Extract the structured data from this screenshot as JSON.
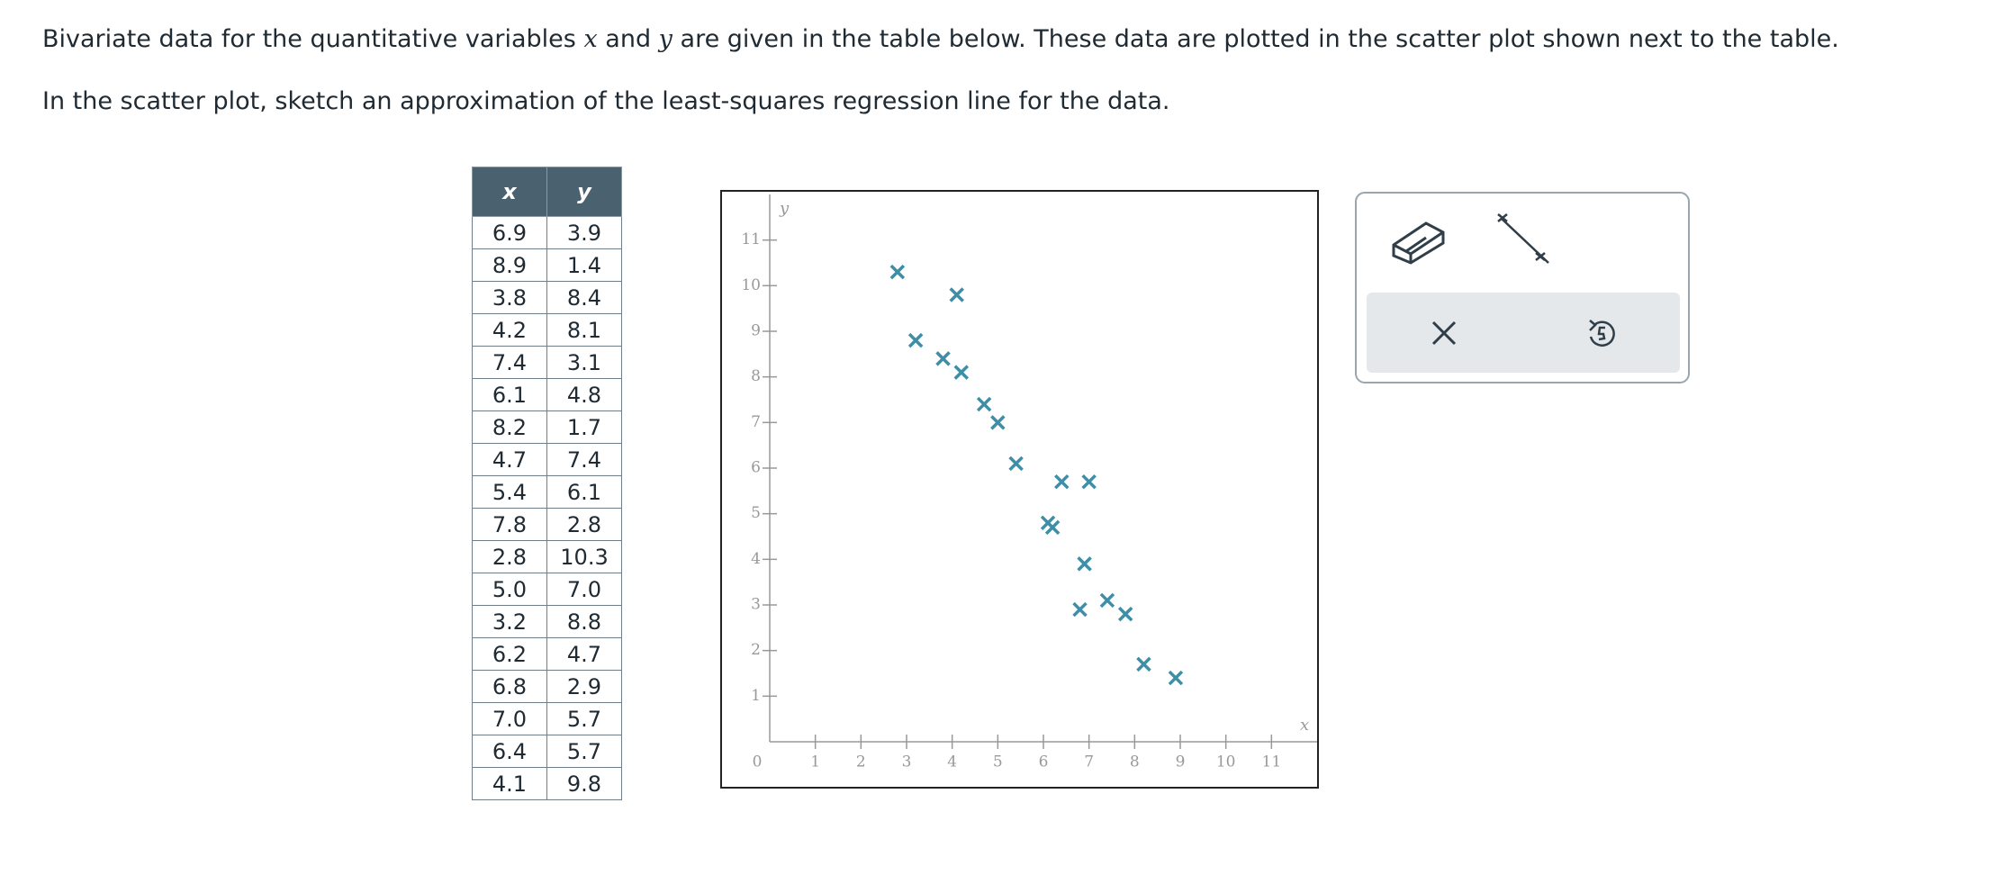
{
  "prompt": {
    "intro": [
      "Bivariate data for the quantitative variables",
      "x",
      "and",
      "y",
      "are given in the table below. These data are plotted in the scatter plot shown next to the table."
    ],
    "instruction": "In the scatter plot, sketch an approximation of the least-squares regression line for the data."
  },
  "table": {
    "header": [
      "x",
      "y"
    ],
    "rows": [
      [
        "6.9",
        "3.9"
      ],
      [
        "8.9",
        "1.4"
      ],
      [
        "3.8",
        "8.4"
      ],
      [
        "4.2",
        "8.1"
      ],
      [
        "7.4",
        "3.1"
      ],
      [
        "6.1",
        "4.8"
      ],
      [
        "8.2",
        "1.7"
      ],
      [
        "4.7",
        "7.4"
      ],
      [
        "5.4",
        "6.1"
      ],
      [
        "7.8",
        "2.8"
      ],
      [
        "2.8",
        "10.3"
      ],
      [
        "5.0",
        "7.0"
      ],
      [
        "3.2",
        "8.8"
      ],
      [
        "6.2",
        "4.7"
      ],
      [
        "6.8",
        "2.9"
      ],
      [
        "7.0",
        "5.7"
      ],
      [
        "6.4",
        "5.7"
      ],
      [
        "4.1",
        "9.8"
      ]
    ]
  },
  "chart_data": {
    "type": "scatter",
    "x_label": "x",
    "y_label": "y",
    "color": "#3d8ea6",
    "x": [
      6.9,
      8.9,
      3.8,
      4.2,
      7.4,
      6.1,
      8.2,
      4.7,
      5.4,
      7.8,
      2.8,
      5.0,
      3.2,
      6.2,
      6.8,
      7.0,
      6.4,
      4.1
    ],
    "values": [
      3.9,
      1.4,
      8.4,
      8.1,
      3.1,
      4.8,
      1.7,
      7.4,
      6.1,
      2.8,
      10.3,
      7.0,
      8.8,
      4.7,
      2.9,
      5.7,
      5.7,
      9.8
    ],
    "xlim": [
      0,
      12
    ],
    "ylim": [
      0,
      12
    ],
    "xticks": [
      0,
      1,
      2,
      3,
      4,
      5,
      6,
      7,
      8,
      9,
      10,
      11
    ],
    "yticks": [
      1,
      2,
      3,
      4,
      5,
      6,
      7,
      8,
      9,
      10,
      11
    ]
  }
}
